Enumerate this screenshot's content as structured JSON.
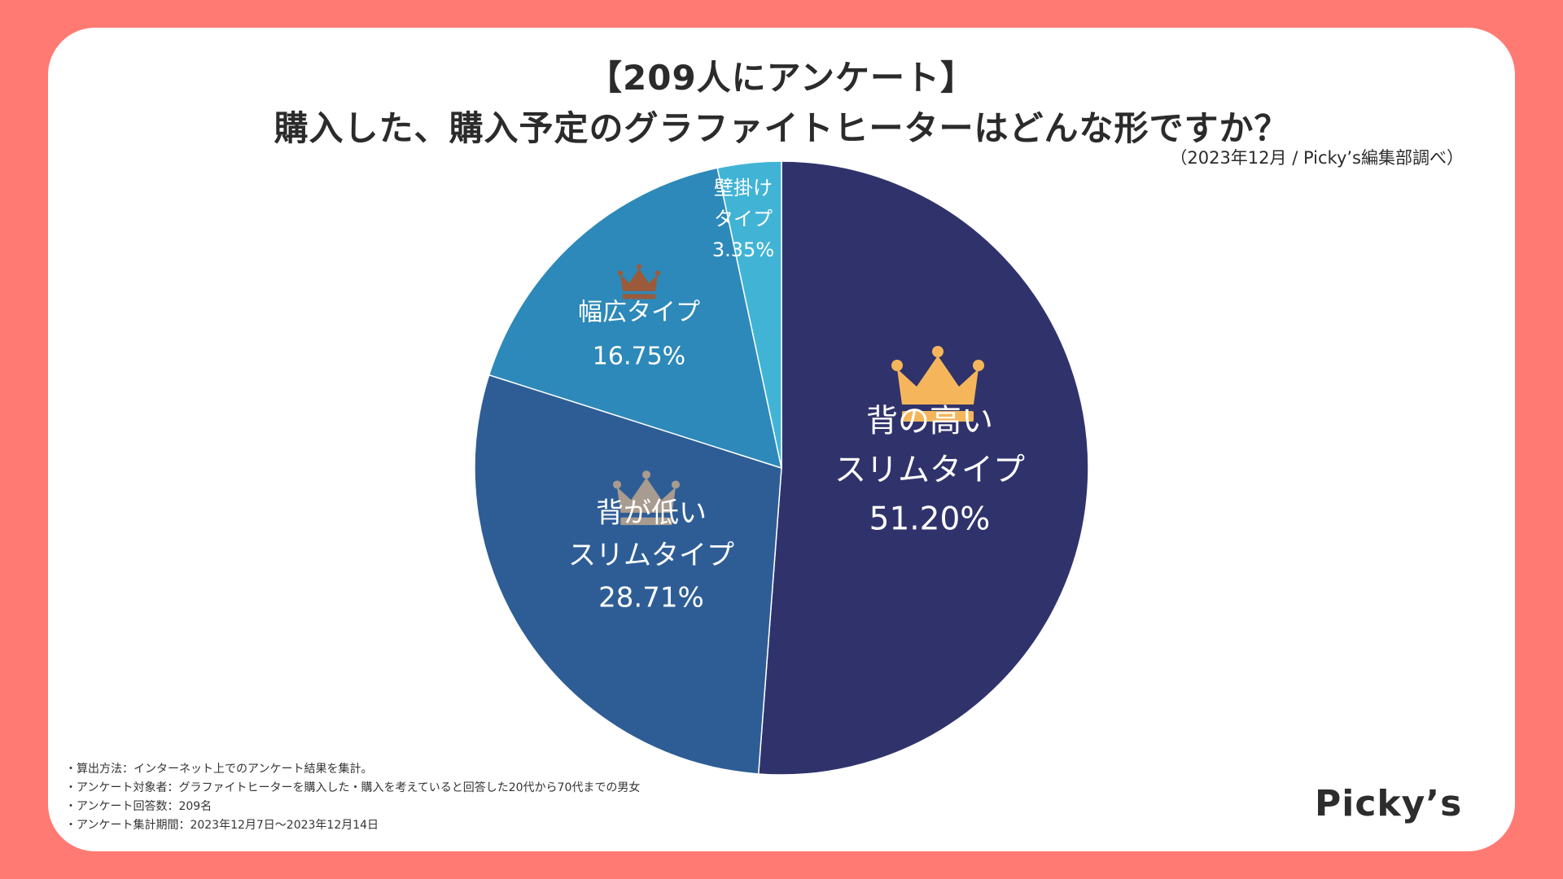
{
  "header": {
    "title_line1": "【209人にアンケート】",
    "title_line2": "購入した、購入予定のグラファイトヒーターはどんな形ですか？",
    "subtitle": "（2023年12月 / Picky’s編集部調べ）"
  },
  "chart_data": {
    "type": "pie",
    "title": "購入した、購入予定のグラファイトヒーターはどんな形ですか？",
    "slices": [
      {
        "label_lines": [
          "背の高い",
          "スリムタイプ"
        ],
        "value": 51.2,
        "value_label": "51.20%",
        "color": "#30336b",
        "crown_color": "#f5b65b",
        "rank": 1
      },
      {
        "label_lines": [
          "背が低い",
          "スリムタイプ"
        ],
        "value": 28.71,
        "value_label": "28.71%",
        "color": "#2e5d96",
        "crown_color": "#a89b8f",
        "rank": 2
      },
      {
        "label_lines": [
          "幅広タイプ"
        ],
        "value": 16.75,
        "value_label": "16.75%",
        "color": "#2d89b9",
        "crown_color": "#9b5b3a",
        "rank": 3
      },
      {
        "label_lines": [
          "壁掛け",
          "タイプ"
        ],
        "value": 3.35,
        "value_label": "3.35%",
        "color": "#41b4d6",
        "crown_color": "",
        "rank": 4
      }
    ]
  },
  "notes": [
    "・算出方法：インターネット上でのアンケート結果を集計。",
    "・アンケート対象者：グラファイトヒーターを購入した・購入を考えていると回答した20代から70代までの男女",
    "・アンケート回答数：209名",
    "・アンケート集計期間：2023年12月7日〜2023年12月14日"
  ],
  "logo": "Picky’s"
}
